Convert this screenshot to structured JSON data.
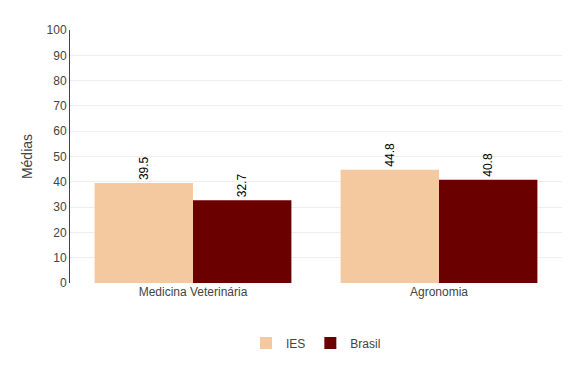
{
  "chart_data": {
    "type": "bar",
    "categories": [
      "Medicina Veterinária",
      "Agronomia"
    ],
    "series": [
      {
        "name": "IES",
        "color": "#F5C9A0",
        "values": [
          39.5,
          44.8
        ]
      },
      {
        "name": "Brasil",
        "color": "#6B0000",
        "values": [
          32.7,
          40.8
        ]
      }
    ],
    "ylabel": "Médias",
    "ylim": [
      0,
      100
    ],
    "yticks": [
      0,
      10,
      20,
      30,
      40,
      50,
      60,
      70,
      80,
      90,
      100
    ],
    "grid": true,
    "legend": "bottom",
    "data_labels": true
  }
}
